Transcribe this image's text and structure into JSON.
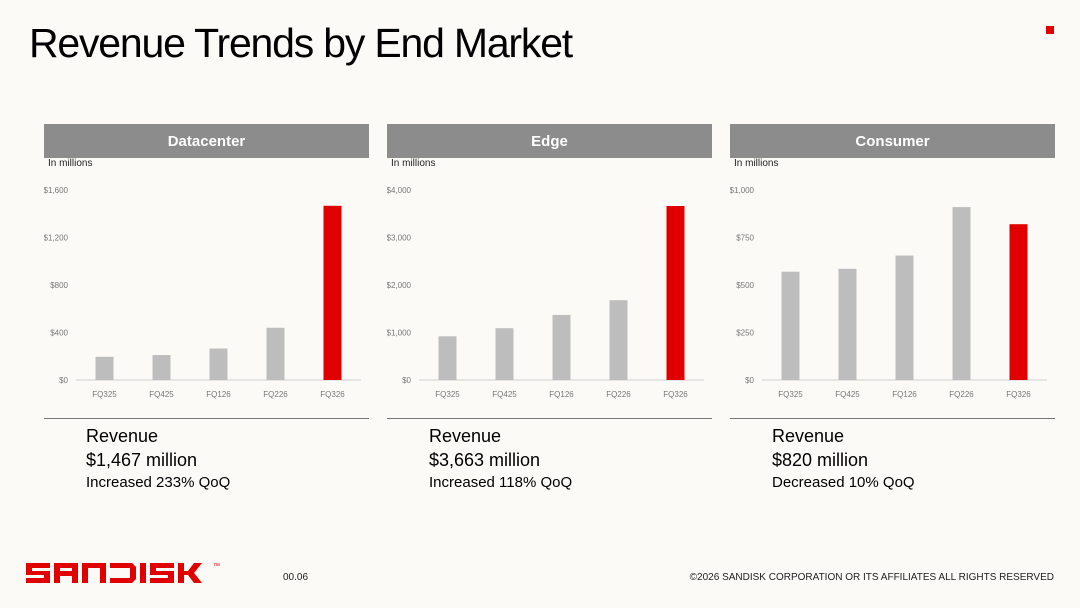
{
  "page": {
    "title": "Revenue Trends by End Market",
    "page_number": "00.06",
    "copyright": "©2026 SANDISK CORPORATION OR ITS AFFILIATES ALL RIGHTS RESERVED",
    "logo_text": "SANDISK",
    "logo_tm": "™"
  },
  "colors": {
    "accent": "#e00000",
    "bar": "#bdbdbd",
    "header_bg": "#8c8c8c"
  },
  "panels": [
    {
      "header": "Datacenter",
      "units": "In millions",
      "revenue_label": "Revenue",
      "revenue_value": "$1,467 million",
      "revenue_change": "Increased 233% QoQ"
    },
    {
      "header": "Edge",
      "units": "In millions",
      "revenue_label": "Revenue",
      "revenue_value": "$3,663 million",
      "revenue_change": "Increased 118% QoQ"
    },
    {
      "header": "Consumer",
      "units": "In millions",
      "revenue_label": "Revenue",
      "revenue_value": "$820 million",
      "revenue_change": "Decreased 10% QoQ"
    }
  ],
  "chart_data": [
    {
      "type": "bar",
      "title": "Datacenter",
      "categories": [
        "FQ325",
        "FQ425",
        "FQ126",
        "FQ226",
        "FQ326"
      ],
      "values": [
        195,
        210,
        265,
        440,
        1467
      ],
      "highlight_index": 4,
      "ylim": [
        0,
        1600
      ],
      "yticks": [
        0,
        400,
        800,
        1200,
        1600
      ],
      "ytick_labels": [
        "$0",
        "$400",
        "$800",
        "$1,200",
        "$1,600"
      ],
      "grid": false
    },
    {
      "type": "bar",
      "title": "Edge",
      "categories": [
        "FQ325",
        "FQ425",
        "FQ126",
        "FQ226",
        "FQ326"
      ],
      "values": [
        920,
        1090,
        1370,
        1680,
        3663
      ],
      "highlight_index": 4,
      "ylim": [
        0,
        4000
      ],
      "yticks": [
        0,
        1000,
        2000,
        3000,
        4000
      ],
      "ytick_labels": [
        "$0",
        "$1,000",
        "$2,000",
        "$3,000",
        "$4,000"
      ],
      "grid": false
    },
    {
      "type": "bar",
      "title": "Consumer",
      "categories": [
        "FQ325",
        "FQ425",
        "FQ126",
        "FQ226",
        "FQ326"
      ],
      "values": [
        570,
        585,
        655,
        910,
        820
      ],
      "highlight_index": 4,
      "ylim": [
        0,
        1000
      ],
      "yticks": [
        0,
        250,
        500,
        750,
        1000
      ],
      "ytick_labels": [
        "$0",
        "$250",
        "$500",
        "$750",
        "$1,000"
      ],
      "grid": false
    }
  ]
}
